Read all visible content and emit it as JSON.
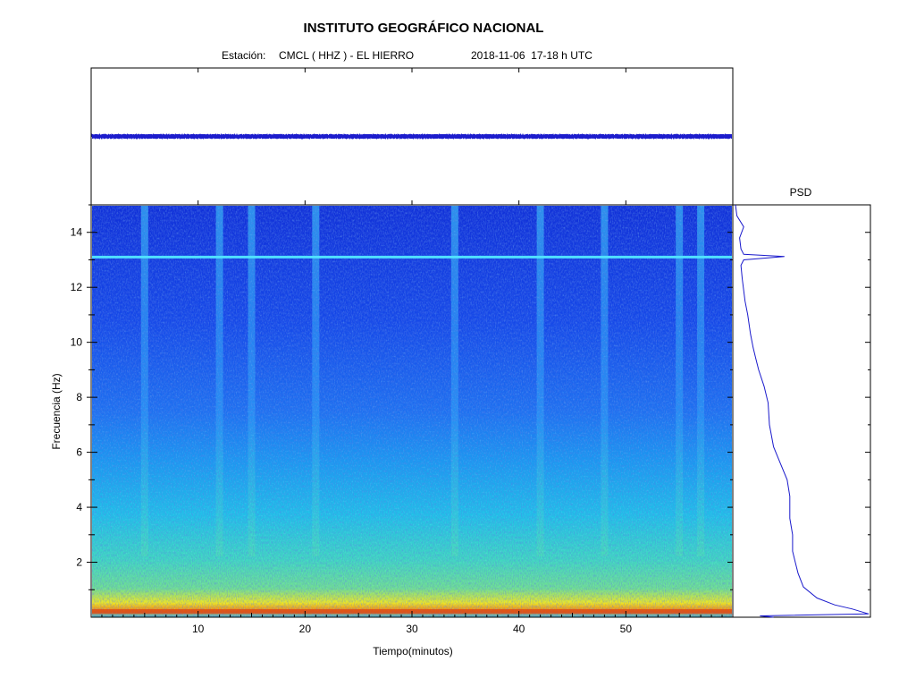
{
  "header": {
    "title": "INSTITUTO GEOGRÁFICO NACIONAL",
    "station_label": "Estación:",
    "station": "CMCL ( HHZ ) - EL HIERRO",
    "datetime": "2018-11-06  17-18 h UTC"
  },
  "chart_data": [
    {
      "type": "line",
      "panel": "seismogram",
      "title": "",
      "description_visible": "flat waveform trace",
      "color": "#1a1acc",
      "xlim": [
        0,
        60
      ],
      "series": [
        {
          "values": "near-constant amplitude trace across 0-60 min"
        }
      ]
    },
    {
      "type": "heatmap",
      "panel": "spectrogram",
      "xlabel": "Tiempo(minutos)",
      "ylabel": "Frecuencia  (Hz)",
      "xlim": [
        0,
        60
      ],
      "ylim": [
        0,
        15
      ],
      "x_ticks": [
        "10",
        "20",
        "30",
        "40",
        "50"
      ],
      "y_ticks": [
        "2",
        "4",
        "6",
        "8",
        "10",
        "12",
        "14"
      ],
      "colormap": [
        "#00008f",
        "#0000ff",
        "#0080ff",
        "#00ffff",
        "#80ff80",
        "#ffff00",
        "#ff8000",
        "#ff0000"
      ],
      "features": {
        "persistent_line_hz": 13.1,
        "high_energy_band_hz": [
          0,
          0.8
        ],
        "transient_bursts_minutes": [
          5,
          12,
          15,
          21,
          34,
          42,
          48,
          55,
          57
        ]
      }
    },
    {
      "type": "line",
      "panel": "psd",
      "title": "PSD",
      "ylim": [
        0,
        15
      ],
      "color": "#1a1acc",
      "points": [
        [
          0.02,
          15.0
        ],
        [
          0.03,
          14.6
        ],
        [
          0.08,
          14.2
        ],
        [
          0.05,
          13.8
        ],
        [
          0.06,
          13.4
        ],
        [
          0.08,
          13.2
        ],
        [
          0.38,
          13.12
        ],
        [
          0.08,
          13.0
        ],
        [
          0.06,
          12.8
        ],
        [
          0.07,
          12.3
        ],
        [
          0.09,
          11.5
        ],
        [
          0.11,
          11.0
        ],
        [
          0.13,
          10.3
        ],
        [
          0.15,
          9.8
        ],
        [
          0.17,
          9.4
        ],
        [
          0.19,
          9.0
        ],
        [
          0.23,
          8.4
        ],
        [
          0.26,
          7.8
        ],
        [
          0.27,
          7.0
        ],
        [
          0.3,
          6.2
        ],
        [
          0.35,
          5.6
        ],
        [
          0.4,
          5.0
        ],
        [
          0.42,
          4.4
        ],
        [
          0.42,
          3.6
        ],
        [
          0.44,
          3.0
        ],
        [
          0.44,
          2.4
        ],
        [
          0.46,
          2.0
        ],
        [
          0.48,
          1.6
        ],
        [
          0.52,
          1.1
        ],
        [
          0.62,
          0.7
        ],
        [
          0.75,
          0.45
        ],
        [
          0.88,
          0.3
        ],
        [
          1.0,
          0.12
        ],
        [
          0.2,
          0.05
        ],
        [
          0.3,
          0.0
        ]
      ]
    }
  ]
}
